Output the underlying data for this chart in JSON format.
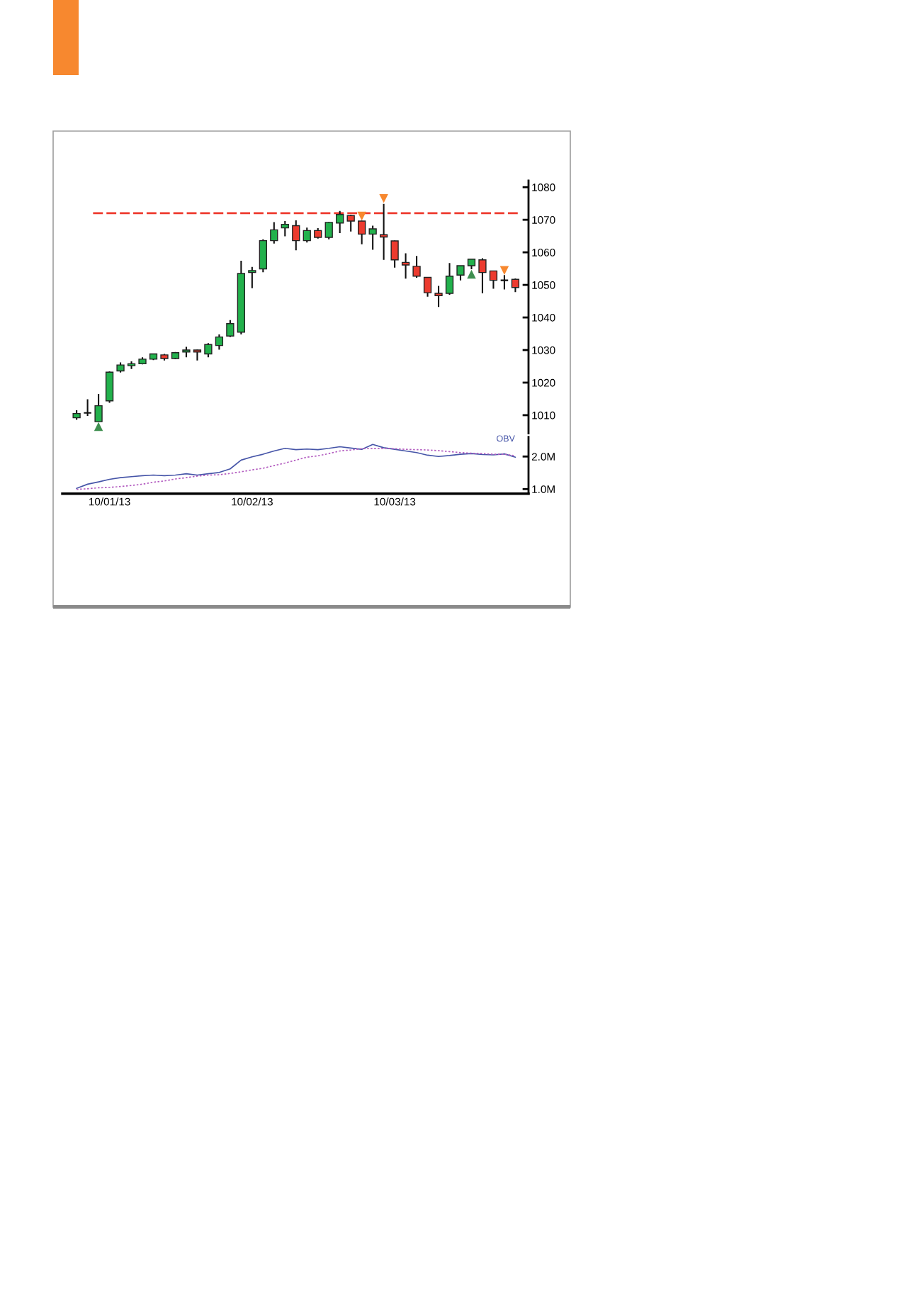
{
  "chart_data": [
    {
      "type": "candlestick",
      "categories": [
        null,
        null,
        null,
        null,
        null,
        null,
        null,
        null,
        null,
        null,
        null,
        null,
        null,
        null,
        null,
        null,
        null,
        null,
        null,
        null,
        null,
        null,
        null,
        null,
        null,
        null,
        null,
        null,
        null,
        null,
        null,
        null,
        null,
        null,
        null,
        null,
        null,
        null,
        null,
        null,
        null
      ],
      "ohlc": [
        [
          1009.2,
          1011.5,
          1008.6,
          1010.5
        ],
        [
          1010.7,
          1014.9,
          1009.8,
          1010.7
        ],
        [
          1008.0,
          1016.5,
          1008.0,
          1012.9
        ],
        [
          1014.4,
          1023.4,
          1013.8,
          1023.2
        ],
        [
          1023.6,
          1026.2,
          1023.1,
          1025.4
        ],
        [
          1025.2,
          1026.5,
          1024.2,
          1025.8
        ],
        [
          1025.8,
          1027.8,
          1025.6,
          1027.2
        ],
        [
          1027.2,
          1028.8,
          1026.9,
          1028.8
        ],
        [
          1028.5,
          1028.8,
          1026.8,
          1027.4
        ],
        [
          1027.4,
          1029.4,
          1027.2,
          1029.2
        ],
        [
          1029.4,
          1031.0,
          1027.8,
          1030.0
        ],
        [
          1030.0,
          1030.1,
          1026.8,
          1029.4
        ],
        [
          1028.8,
          1032.1,
          1027.8,
          1031.7
        ],
        [
          1031.4,
          1034.8,
          1030.1,
          1034.0
        ],
        [
          1034.3,
          1039.2,
          1034.0,
          1038.1
        ],
        [
          1035.5,
          1057.4,
          1034.8,
          1053.5
        ],
        [
          1053.8,
          1055.5,
          1049.0,
          1054.4
        ],
        [
          1054.9,
          1064.0,
          1053.9,
          1063.6
        ],
        [
          1063.6,
          1069.3,
          1062.7,
          1066.9
        ],
        [
          1067.5,
          1069.6,
          1064.9,
          1068.6
        ],
        [
          1068.2,
          1069.8,
          1060.6,
          1063.6
        ],
        [
          1063.6,
          1067.6,
          1063.0,
          1066.7
        ],
        [
          1066.7,
          1067.4,
          1064.2,
          1064.6
        ],
        [
          1064.6,
          1069.4,
          1064.0,
          1069.2
        ],
        [
          1069.0,
          1072.7,
          1065.9,
          1071.6
        ],
        [
          1071.3,
          1071.5,
          1066.4,
          1069.6
        ],
        [
          1069.6,
          1069.7,
          1062.5,
          1065.6
        ],
        [
          1065.6,
          1068.2,
          1060.8,
          1067.2
        ],
        [
          1065.4,
          1074.9,
          1057.7,
          1064.7
        ],
        [
          1063.5,
          1063.6,
          1055.3,
          1057.7
        ],
        [
          1056.9,
          1059.7,
          1051.9,
          1056.1
        ],
        [
          1055.7,
          1058.9,
          1052.2,
          1052.7
        ],
        [
          1052.3,
          1052.4,
          1046.4,
          1047.6
        ],
        [
          1047.4,
          1049.7,
          1043.2,
          1046.7
        ],
        [
          1047.4,
          1056.7,
          1047.0,
          1052.7
        ],
        [
          1053.0,
          1055.9,
          1051.4,
          1055.9
        ],
        [
          1055.9,
          1057.9,
          1054.8,
          1057.9
        ],
        [
          1057.7,
          1058.2,
          1047.4,
          1053.8
        ],
        [
          1054.3,
          1054.3,
          1048.8,
          1051.4
        ],
        [
          1051.4,
          1053.0,
          1048.6,
          1051.4
        ],
        [
          1051.7,
          1052.0,
          1047.8,
          1049.2
        ]
      ],
      "colors": [
        "#22b14c",
        "#111111",
        "#22b14c",
        "#22b14c",
        "#22b14c",
        "#22b14c",
        "#22b14c",
        "#22b14c",
        "#ec3b2f",
        "#22b14c",
        "#22b14c",
        "#ec3b2f",
        "#22b14c",
        "#22b14c",
        "#22b14c",
        "#22b14c",
        "#22b14c",
        "#22b14c",
        "#22b14c",
        "#22b14c",
        "#ec3b2f",
        "#22b14c",
        "#ec3b2f",
        "#22b14c",
        "#22b14c",
        "#ec3b2f",
        "#ec3b2f",
        "#22b14c",
        "#ec3b2f",
        "#ec3b2f",
        "#ec3b2f",
        "#ec3b2f",
        "#ec3b2f",
        "#ec3b2f",
        "#22b14c",
        "#22b14c",
        "#22b14c",
        "#ec3b2f",
        "#ec3b2f",
        "#111111",
        "#ec3b2f"
      ],
      "series": [
        {
          "type": "scatter",
          "marker": "triangle",
          "color": "#3f8f50",
          "values": [
            null,
            null,
            1006.5,
            null,
            null,
            null,
            null,
            null,
            null,
            null,
            null,
            null,
            null,
            null,
            null,
            null,
            null,
            null,
            null,
            null,
            null,
            null,
            null,
            null,
            null,
            null,
            null,
            null,
            null,
            null,
            null,
            null,
            null,
            null,
            null,
            null,
            1053.3,
            null,
            null,
            null,
            null
          ]
        },
        {
          "type": "scatter",
          "marker": "triangle_down",
          "color": "#f7882f",
          "values": [
            null,
            null,
            null,
            null,
            null,
            null,
            null,
            null,
            null,
            null,
            null,
            null,
            null,
            null,
            null,
            null,
            null,
            null,
            null,
            null,
            null,
            null,
            null,
            null,
            null,
            null,
            1071.1,
            null,
            1076.5,
            null,
            null,
            null,
            null,
            null,
            null,
            null,
            null,
            null,
            null,
            1054.4,
            null
          ]
        }
      ],
      "ylim": [
        1004.4,
        1082
      ],
      "yticks": [
        1010,
        1020,
        1030,
        1040,
        1050,
        1060,
        1070,
        1080
      ],
      "ref_lines": [
        {
          "axis": "y",
          "value": 1072,
          "color": "#ee3a2e",
          "line_style": "dashed"
        }
      ],
      "tick_labels": "y"
    },
    {
      "type": "line",
      "categories": [
        null,
        null,
        null,
        "10/01/13",
        null,
        null,
        null,
        null,
        null,
        null,
        null,
        null,
        null,
        null,
        null,
        null,
        "10/02/13",
        null,
        null,
        null,
        null,
        null,
        null,
        null,
        null,
        null,
        null,
        null,
        null,
        "10/03/13",
        null,
        null,
        null,
        null,
        null,
        null,
        null,
        null,
        null,
        null,
        null
      ],
      "series": [
        {
          "name": "OBV",
          "color": "#4655a8",
          "line_style": "solid",
          "values": [
            1020000,
            1150000,
            1220000,
            1300000,
            1350000,
            1380000,
            1410000,
            1430000,
            1410000,
            1430000,
            1470000,
            1430000,
            1470000,
            1510000,
            1620000,
            1890000,
            1990000,
            2070000,
            2170000,
            2250000,
            2210000,
            2230000,
            2210000,
            2250000,
            2300000,
            2260000,
            2220000,
            2370000,
            2270000,
            2220000,
            2170000,
            2120000,
            2040000,
            2000000,
            2030000,
            2070000,
            2090000,
            2060000,
            2050000,
            2080000,
            1980000
          ]
        },
        {
          "color": "#b35cc0",
          "line_style": "dotted",
          "values": [
            990000,
            1010000,
            1040000,
            1050000,
            1080000,
            1110000,
            1150000,
            1210000,
            1250000,
            1310000,
            1350000,
            1400000,
            1430000,
            1440000,
            1480000,
            1530000,
            1590000,
            1640000,
            1720000,
            1800000,
            1890000,
            1980000,
            2020000,
            2090000,
            2170000,
            2200000,
            2240000,
            2250000,
            2250000,
            2240000,
            2220000,
            2210000,
            2200000,
            2180000,
            2150000,
            2120000,
            2100000,
            2090000,
            2070000,
            2070000,
            2020000
          ]
        }
      ],
      "ylim": [
        860000,
        2600000
      ],
      "yticks": [
        {
          "value": 1000000,
          "label": "1.0M"
        },
        {
          "value": 2000000,
          "label": "2.0M"
        }
      ]
    }
  ]
}
